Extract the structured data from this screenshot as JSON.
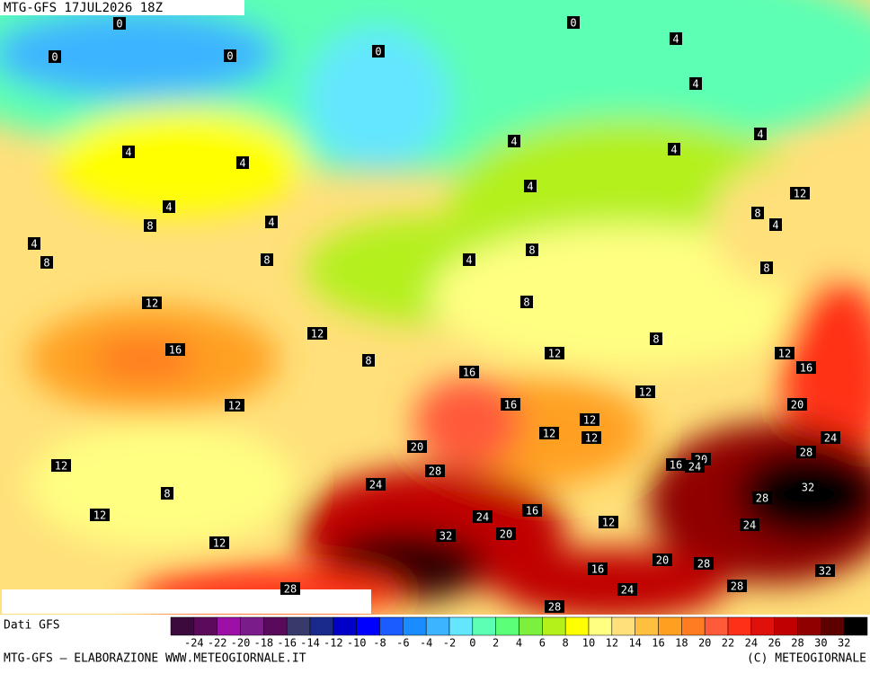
{
  "header": {
    "title": "MTG-GFS 17JUL2026 18Z"
  },
  "map_labels": [
    0,
    0,
    0,
    0,
    0,
    4,
    4,
    4,
    4,
    4,
    4,
    4,
    4,
    4,
    4,
    4,
    4,
    4,
    8,
    8,
    8,
    8,
    8,
    8,
    8,
    8,
    8,
    8,
    12,
    12,
    12,
    12,
    12,
    12,
    12,
    12,
    12,
    12,
    12,
    12,
    12,
    12,
    16,
    16,
    16,
    16,
    16,
    16,
    16,
    20,
    20,
    20,
    20,
    20,
    24,
    24,
    24,
    24,
    24,
    24,
    28,
    28,
    28,
    28,
    28,
    28,
    28,
    32,
    32,
    32
  ],
  "colorbar": {
    "title": "Dati GFS",
    "ticks": [
      -24,
      -22,
      -20,
      -18,
      -16,
      -14,
      -12,
      -10,
      -8,
      -6,
      -4,
      -2,
      0,
      2,
      4,
      6,
      8,
      10,
      12,
      14,
      16,
      18,
      20,
      22,
      24,
      26,
      28,
      30,
      32
    ],
    "colors": [
      "#3c0a3c",
      "#5c0a5c",
      "#9c10a8",
      "#7a1c8a",
      "#5a0a5a",
      "#383a6c",
      "#1a2a8c",
      "#0000c8",
      "#0000ff",
      "#1a5cff",
      "#1a8cff",
      "#3cb4ff",
      "#64e6ff",
      "#5cffb4",
      "#5cff78",
      "#7cf03c",
      "#b4f01a",
      "#ffff00",
      "#ffff82",
      "#ffe07a",
      "#ffc040",
      "#ffa020",
      "#ff7c20",
      "#ff5a3a",
      "#ff3018",
      "#e0100a",
      "#c00000",
      "#900000",
      "#5c0000",
      "#000000"
    ]
  },
  "footer": {
    "left": "MTG-GFS — ELABORAZIONE WWW.METEOGIORNALE.IT",
    "right": "(C) METEOGIORNALE"
  }
}
